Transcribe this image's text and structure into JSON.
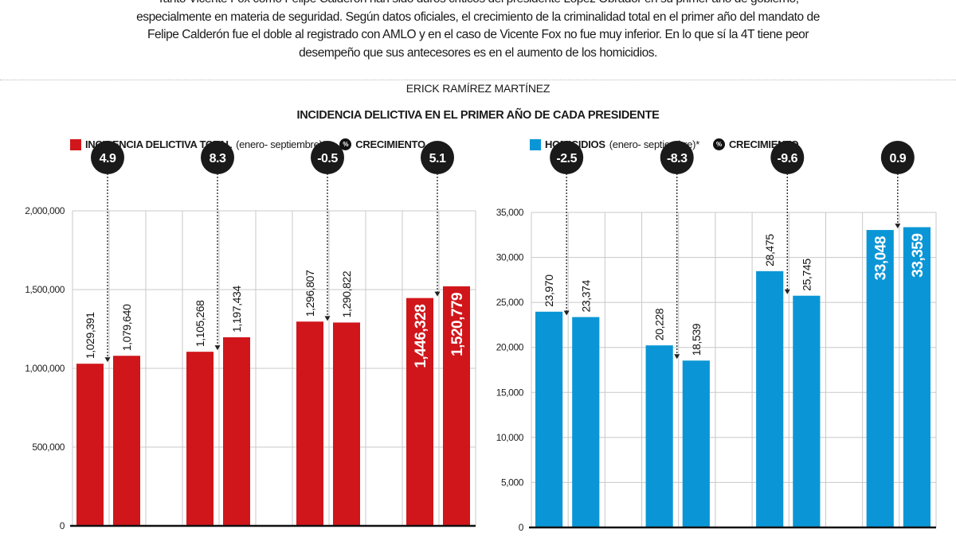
{
  "intro": "Tanto Vicente Fox como Felipe Calderón han sido duros críticos del presidente López Obrador en su primer año de gobierno, especialmente en materia de seguridad. Según datos oficiales, el crecimiento de la criminalidad total en el primer año del mandato de Felipe Calderón fue el doble al registrado con AMLO y en el caso de Vicente Fox no fue muy inferior. En lo que sí la 4T tiene peor desempeño que sus antecesores es en el aumento de los homicidios.",
  "author": "ERICK RAMÍREZ MARTÍNEZ",
  "title": "INCIDENCIA DELICTIVA EN EL PRIMER AÑO DE CADA PRESIDENTE",
  "growth_legend": {
    "icon": "percent-circle-icon",
    "symbol": "%",
    "label": "CRECIMIENTO"
  },
  "chart_data": [
    {
      "type": "bar",
      "series_name": "INCIDENCIA DELICTIVA TOTAL",
      "series_note": "(enero- septiembre)*",
      "color": "#d0161b",
      "ylim": [
        0,
        2000000
      ],
      "yticks": [
        "0",
        "500,000",
        "1,000,000",
        "1,500,000",
        "2,000,000"
      ],
      "ytick_values": [
        0,
        500000,
        1000000,
        1500000,
        2000000
      ],
      "grid": true,
      "groups": [
        {
          "values": [
            1029391,
            1079640
          ],
          "labels": [
            "1,029,391",
            "1,079,640"
          ],
          "growth": "4.9"
        },
        {
          "values": [
            1105268,
            1197434
          ],
          "labels": [
            "1,105,268",
            "1,197,434"
          ],
          "growth": "8.3"
        },
        {
          "values": [
            1296807,
            1290822
          ],
          "labels": [
            "1,296,807",
            "1,290,822"
          ],
          "growth": "-0.5"
        },
        {
          "values": [
            1446328,
            1520779
          ],
          "labels": [
            "1,446,328",
            "1,520,779"
          ],
          "growth": "5.1"
        }
      ]
    },
    {
      "type": "bar",
      "series_name": "HOMICIDIOS",
      "series_note": "(enero- septiembre)*",
      "color": "#0a96d6",
      "ylim": [
        0,
        35000
      ],
      "yticks": [
        "0",
        "5,000",
        "10,000",
        "15,000",
        "20,000",
        "25,000",
        "30,000",
        "35,000"
      ],
      "ytick_values": [
        0,
        5000,
        10000,
        15000,
        20000,
        25000,
        30000,
        35000
      ],
      "grid": true,
      "groups": [
        {
          "values": [
            23970,
            23374
          ],
          "labels": [
            "23,970",
            "23,374"
          ],
          "growth": "-2.5"
        },
        {
          "values": [
            20228,
            18539
          ],
          "labels": [
            "20,228",
            "18,539"
          ],
          "growth": "-8.3"
        },
        {
          "values": [
            28475,
            25745
          ],
          "labels": [
            "28,475",
            "25,745"
          ],
          "growth": "-9.6"
        },
        {
          "values": [
            33048,
            33359
          ],
          "labels": [
            "33,048",
            "33,359"
          ],
          "growth": "0.9"
        }
      ]
    }
  ]
}
